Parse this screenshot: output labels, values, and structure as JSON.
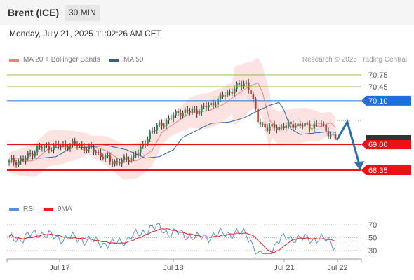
{
  "header": {
    "instrument": "Brent (ICE)",
    "interval": "30 MIN"
  },
  "timestamp": "Monday, July 21, 2025 11:02:26 AM CET",
  "legend": {
    "bollinger": {
      "label": "MA 20 + Bollinger Bands",
      "color": "#f08080"
    },
    "ma50": {
      "label": "MA 50",
      "color": "#2f5f9f"
    },
    "rsi": {
      "label": "RSI",
      "color": "#5b8dd9"
    },
    "rsi_ma": {
      "label": "9MA",
      "color": "#e02020"
    }
  },
  "credit": "Research © 2025 Trading Central",
  "price_levels": [
    {
      "label": "70.75",
      "value": 70.75,
      "kind": "target",
      "color": "#8cc63f"
    },
    {
      "label": "70.45",
      "value": 70.45,
      "kind": "target",
      "color": "#8cc63f"
    },
    {
      "label": "70.10",
      "value": 70.1,
      "kind": "pivot",
      "color": "#1e6fe0"
    },
    {
      "label": "69.00",
      "value": 69.0,
      "kind": "support",
      "color": "#ee1111"
    },
    {
      "label": "68.35",
      "value": 68.35,
      "kind": "support",
      "color": "#ee1111"
    }
  ],
  "rsi_ticks": [
    "70",
    "50",
    "30"
  ],
  "x_ticks": [
    "Jul 17",
    "Jul 18",
    "Jul 21",
    "Jul 22"
  ]
}
